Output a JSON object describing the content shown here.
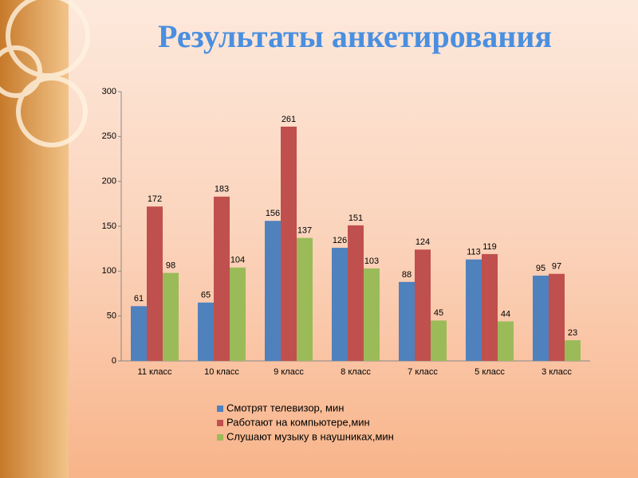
{
  "chart_data": {
    "type": "bar",
    "title": "Результаты анкетирования",
    "categories": [
      "11 класс",
      "10 класс",
      "9 класс",
      "8 класс",
      "7 класс",
      "5 класс",
      "3 класс"
    ],
    "series": [
      {
        "name": "Смотрят телевизор, мин",
        "color": "#4f81bd",
        "values": [
          61,
          65,
          156,
          126,
          88,
          113,
          95
        ]
      },
      {
        "name": "Работают на компьютере,мин",
        "color": "#c0504d",
        "values": [
          172,
          183,
          261,
          151,
          124,
          119,
          97
        ]
      },
      {
        "name": "Слушают музыку в наушниках,мин",
        "color": "#9bbb59",
        "values": [
          98,
          104,
          137,
          103,
          45,
          44,
          23
        ]
      }
    ],
    "ylim": [
      0,
      300
    ],
    "yticks": [
      0,
      50,
      100,
      150,
      200,
      250,
      300
    ],
    "grid": false,
    "legend": "bottom"
  }
}
